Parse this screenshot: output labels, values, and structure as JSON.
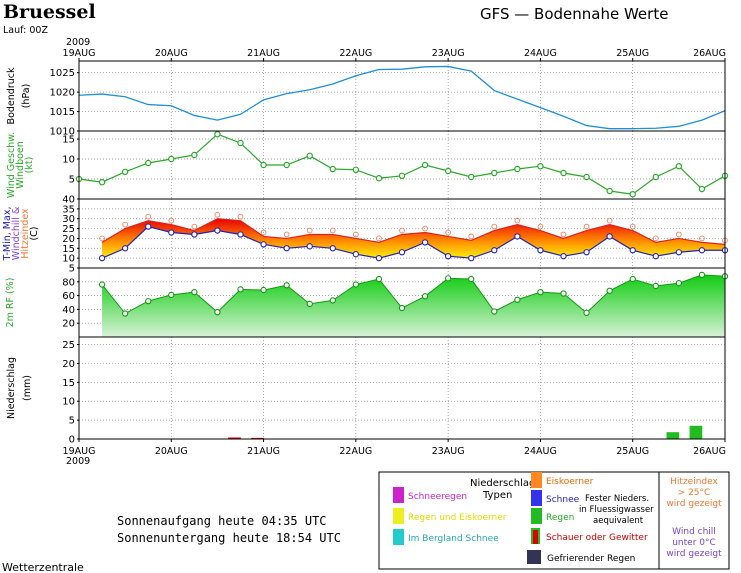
{
  "header": {
    "city": "Bruessel",
    "title": "GFS — Bodennahe Werte",
    "run": "Lauf: 00Z",
    "year": "2009"
  },
  "days": [
    "19AUG",
    "20AUG",
    "21AUG",
    "22AUG",
    "23AUG",
    "24AUG",
    "25AUG",
    "26AUG"
  ],
  "colors": {
    "pressure": "#1e90d6",
    "wind": "#2ba82b",
    "rh": "#22cc22",
    "rain_bar": "#22bb22",
    "showers_bar": "#dd0000",
    "tmax_line": "#dd2222",
    "tmin_line": "#2222bb",
    "frame": "#000000"
  },
  "chart_data": [
    {
      "type": "line",
      "panel": "pressure",
      "ylabel": [
        "Bodendruck",
        "(hPa)"
      ],
      "ylim": [
        1010,
        1028
      ],
      "yticks": [
        1010,
        1015,
        1020,
        1025
      ],
      "x": [
        0,
        0.25,
        0.5,
        0.75,
        1,
        1.25,
        1.5,
        1.75,
        2,
        2.25,
        2.5,
        2.75,
        3,
        3.25,
        3.5,
        3.75,
        4,
        4.25,
        4.5,
        4.75,
        5,
        5.25,
        5.5,
        5.75,
        6,
        6.25,
        6.5,
        6.75,
        7
      ],
      "values": [
        1019.2,
        1019.5,
        1018.8,
        1016.8,
        1016.5,
        1014,
        1012.8,
        1014.3,
        1018,
        1019.6,
        1020.6,
        1022.1,
        1024.2,
        1025.8,
        1025.9,
        1026.5,
        1026.6,
        1025.4,
        1020.4,
        1018.2,
        1016,
        1013.8,
        1011.4,
        1010.6,
        1010.6,
        1010.7,
        1011.2,
        1012.8,
        1015.2
      ],
      "grid": true
    },
    {
      "type": "line",
      "panel": "wind",
      "ylabel": [
        "Wind Geschw.",
        "Windboen",
        "(kt)"
      ],
      "ylim": [
        0,
        17
      ],
      "yticks": [
        5,
        10,
        15
      ],
      "x": [
        0,
        0.25,
        0.5,
        0.75,
        1,
        1.25,
        1.5,
        1.75,
        2,
        2.25,
        2.5,
        2.75,
        3,
        3.25,
        3.5,
        3.75,
        4,
        4.25,
        4.5,
        4.75,
        5,
        5.25,
        5.5,
        5.75,
        6,
        6.25,
        6.5,
        6.75,
        7
      ],
      "values": [
        5,
        4.2,
        6.8,
        9,
        10,
        11,
        16.2,
        14,
        8.5,
        8.5,
        10.8,
        7.5,
        7.3,
        5.2,
        5.8,
        8.5,
        7,
        5.5,
        6.5,
        7.5,
        8.2,
        6.5,
        5.5,
        2,
        1.2,
        5.5,
        8.2,
        2.5,
        5.8
      ],
      "grid": true
    },
    {
      "type": "area",
      "panel": "temperature",
      "ylabel": [
        "T-Min, Max,",
        "Windchill &",
        "Hitzeindex",
        "(C)"
      ],
      "ylim": [
        5,
        40
      ],
      "yticks": [
        5,
        10,
        15,
        20,
        25,
        30,
        35,
        40
      ],
      "x": [
        0.25,
        0.5,
        0.75,
        1,
        1.25,
        1.5,
        1.75,
        2,
        2.25,
        2.5,
        2.75,
        3,
        3.25,
        3.5,
        3.75,
        4,
        4.25,
        4.5,
        4.75,
        5,
        5.25,
        5.5,
        5.75,
        6,
        6.25,
        6.5,
        6.75,
        7
      ],
      "tmax": [
        18,
        25,
        29,
        27,
        24,
        30,
        29,
        21,
        20,
        22,
        22,
        20,
        18,
        22,
        23,
        21,
        19,
        24,
        27,
        24,
        20,
        24,
        27,
        24,
        18,
        20,
        18,
        17
      ],
      "tmin": [
        10,
        15,
        26,
        23,
        22,
        24,
        22,
        17,
        15,
        16,
        15,
        12,
        10,
        13,
        18,
        11,
        10,
        14,
        21,
        14,
        11,
        13,
        21,
        14,
        11,
        13,
        14,
        14
      ],
      "grid": true
    },
    {
      "type": "area",
      "panel": "humidity",
      "ylabel": [
        "2m RF (%)"
      ],
      "ylim": [
        0,
        100
      ],
      "yticks": [
        20,
        40,
        60,
        80
      ],
      "x": [
        0.25,
        0.5,
        0.75,
        1,
        1.25,
        1.5,
        1.75,
        2,
        2.25,
        2.5,
        2.75,
        3,
        3.25,
        3.5,
        3.75,
        4,
        4.25,
        4.5,
        4.75,
        5,
        5.25,
        5.5,
        5.75,
        6,
        6.25,
        6.5,
        6.75,
        7
      ],
      "values": [
        76,
        34,
        52,
        61,
        65,
        36,
        69,
        68,
        75,
        48,
        53,
        76,
        84,
        42,
        59,
        85,
        84,
        37,
        54,
        65,
        63,
        35,
        67,
        84,
        74,
        78,
        90,
        88
      ],
      "grid": true
    },
    {
      "type": "bar",
      "panel": "precipitation",
      "ylabel": [
        "Niederschlag",
        "(mm)"
      ],
      "ylim": [
        0,
        27
      ],
      "yticks": [
        0,
        5,
        10,
        15,
        20,
        25
      ],
      "bars": [
        {
          "x": 1.75,
          "value": 0.4,
          "kind": "Schauer oder Gewitter"
        },
        {
          "x": 2.0,
          "value": 0.3,
          "kind": "Schauer oder Gewitter"
        },
        {
          "x": 6.5,
          "value": 1.8,
          "kind": "Regen"
        },
        {
          "x": 6.75,
          "value": 3.5,
          "kind": "Regen"
        }
      ],
      "grid": true
    }
  ],
  "bottom": {
    "year": "2009",
    "sunrise": "Sonnenaufgang heute 04:35 UTC",
    "sunset": "Sonnenuntergang heute 18:54 UTC",
    "source": "Wetterzentrale"
  },
  "legend": {
    "title1": "Niederschlags",
    "title2": "Typen",
    "items": [
      {
        "label": "Schneeregen",
        "color": "#cc22cc",
        "text_color": "#cc22cc"
      },
      {
        "label": "Regen und Eiskoerner",
        "color": "#eeee22",
        "text_color": "#dddd00"
      },
      {
        "label": "Im Bergland Schnee",
        "color": "#22cccc",
        "text_color": "#22aaaa"
      },
      {
        "label": "Eiskoerner",
        "color": "#ff8822",
        "text_color": "#ee6600"
      },
      {
        "label": "Schnee",
        "color": "#3333ee",
        "text_color": "#2222bb"
      },
      {
        "label": "Regen",
        "color": "#22bb22",
        "text_color": "#22aa22"
      },
      {
        "label": "Schauer oder Gewitter",
        "color": "#dd0000",
        "text_color": "#cc0000"
      },
      {
        "label": "Gefrierender Regen",
        "color": "#333355",
        "text_color": "#000000"
      }
    ],
    "note1": "Fester Nieders.",
    "note2": "in Fluessigwasser",
    "note3": "aequivalent",
    "heat1": "Hitzeindex",
    "heat2": "> 25°C",
    "heat3": "wird gezeigt",
    "chill1": "Wind chill",
    "chill2": "unter 0°C",
    "chill3": "wird gezeigt"
  }
}
